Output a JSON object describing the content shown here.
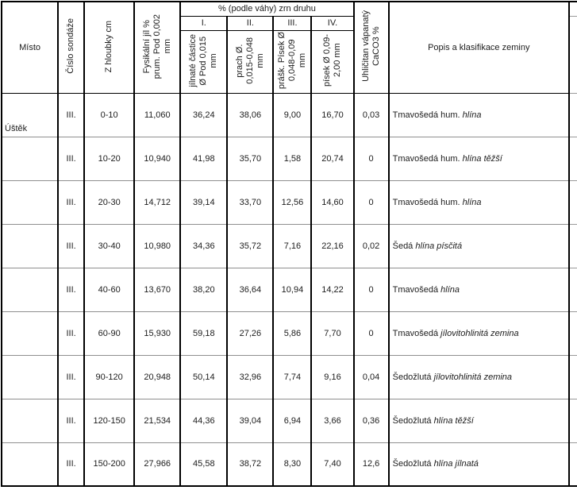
{
  "colors": {
    "text": "#1c1c1c",
    "border_strong": "#000000",
    "border_row": "#8f8f8f",
    "background": "#ffffff"
  },
  "table": {
    "header": {
      "misto": "Místo",
      "cislo_sondaze": "Číslo sondáže",
      "z_hloubky": "Z hloubky cm",
      "fysikalni_jil": "Fysikální jíl %\nprum. Pod 0,002\nmm",
      "group_title": "% (podle váhy) zrn druhu",
      "sub_numerals": [
        "I.",
        "II.",
        "III.",
        "IV."
      ],
      "sub_labels": [
        "jílnaté částice\nØ Pod 0,015\nmm",
        "prach Ø.\n0,015-0,048\nmm",
        "prášk. Písek Ø\n0,048-0,09\nmm",
        "písek Ø 0,09-\n2,00 mm"
      ],
      "uhlicitan": "Uhličitan vápanatý\nCaCO3 %",
      "popis": "Popis a klasifikace zeminy"
    },
    "rows": [
      {
        "misto": "Úštěk",
        "sondaz": "III.",
        "hloubka": "0-10",
        "fysikalni": "11,060",
        "frakce": [
          "36,24",
          "38,06",
          "9,00",
          "16,70"
        ],
        "caco3": "0,03",
        "popis_regular": "Tmavošedá hum.",
        "popis_italic": "hlína"
      },
      {
        "sondaz": "III.",
        "hloubka": "10-20",
        "fysikalni": "10,940",
        "frakce": [
          "41,98",
          "35,70",
          "1,58",
          "20,74"
        ],
        "caco3": "0",
        "popis_regular": "Tmavošedá hum.",
        "popis_italic": "hlína těžší"
      },
      {
        "sondaz": "III.",
        "hloubka": "20-30",
        "fysikalni": "14,712",
        "frakce": [
          "39,14",
          "33,70",
          "12,56",
          "14,60"
        ],
        "caco3": "0",
        "popis_regular": "Tmavošedá hum.",
        "popis_italic": "hlína"
      },
      {
        "sondaz": "III.",
        "hloubka": "30-40",
        "fysikalni": "10,980",
        "frakce": [
          "34,36",
          "35,72",
          "7,16",
          "22,16"
        ],
        "caco3": "0,02",
        "popis_regular": "Šedá",
        "popis_italic": "hlína písčitá"
      },
      {
        "sondaz": "III.",
        "hloubka": "40-60",
        "fysikalni": "13,670",
        "frakce": [
          "38,20",
          "36,64",
          "10,94",
          "14,22"
        ],
        "caco3": "0",
        "popis_regular": "Tmavošedá",
        "popis_italic": "hlína"
      },
      {
        "sondaz": "III.",
        "hloubka": "60-90",
        "fysikalni": "15,930",
        "frakce": [
          "59,18",
          "27,26",
          "5,86",
          "7,70"
        ],
        "caco3": "0",
        "popis_regular": "Tmavošedá",
        "popis_italic": "jílovitohlinitá zemina"
      },
      {
        "sondaz": "III.",
        "hloubka": "90-120",
        "fysikalni": "20,948",
        "frakce": [
          "50,14",
          "32,96",
          "7,74",
          "9,16"
        ],
        "caco3": "0,04",
        "popis_regular": "Šedožlutá",
        "popis_italic": "jílovitohlinitá zemina"
      },
      {
        "sondaz": "III.",
        "hloubka": "120-150",
        "fysikalni": "21,534",
        "frakce": [
          "44,36",
          "39,04",
          "6,94",
          "3,66"
        ],
        "caco3": "0,36",
        "popis_regular": "Šedožlutá",
        "popis_italic": "hlína těžší"
      },
      {
        "sondaz": "III.",
        "hloubka": "150-200",
        "fysikalni": "27,966",
        "frakce": [
          "45,58",
          "38,72",
          "8,30",
          "7,40"
        ],
        "caco3": "12,6",
        "popis_regular": "Šedožlutá",
        "popis_italic": "hlína jílnatá"
      }
    ]
  }
}
